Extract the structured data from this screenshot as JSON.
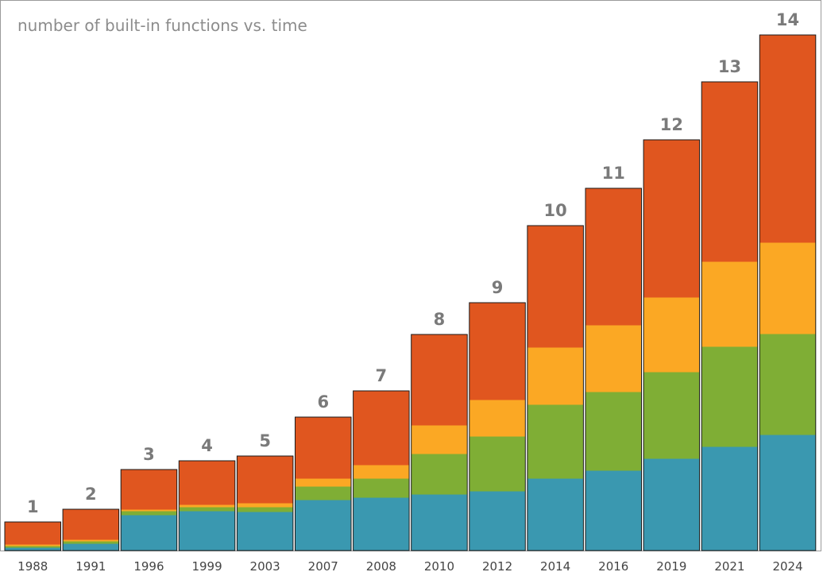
{
  "chart_data": {
    "type": "bar",
    "title": "number of built-in functions vs. time",
    "xlabel": "",
    "ylabel": "",
    "stacked": true,
    "categories": [
      "1988",
      "1991",
      "1996",
      "1999",
      "2003",
      "2007",
      "2008",
      "2010",
      "2012",
      "2014",
      "2016",
      "2019",
      "2021",
      "2024"
    ],
    "version_labels": [
      "1",
      "2",
      "3",
      "4",
      "5",
      "6",
      "7",
      "8",
      "9",
      "10",
      "11",
      "12",
      "13",
      "14"
    ],
    "series": [
      {
        "color": "#3a98b0",
        "values": [
          4,
          9,
          45,
          50,
          49,
          64,
          67,
          71,
          75,
          91,
          101,
          116,
          131,
          146
        ]
      },
      {
        "color": "#7fae35",
        "values": [
          2,
          3,
          5,
          5,
          6,
          17,
          24,
          51,
          69,
          93,
          99,
          109,
          126,
          127
        ]
      },
      {
        "color": "#fba824",
        "values": [
          2,
          2,
          2,
          3,
          5,
          10,
          17,
          36,
          46,
          72,
          84,
          94,
          107,
          115
        ]
      },
      {
        "color": "#e0561f",
        "values": [
          28,
          38,
          50,
          55,
          59,
          77,
          93,
          114,
          122,
          153,
          172,
          198,
          226,
          261
        ]
      }
    ],
    "ylim": [
      0,
      660
    ],
    "grid": false,
    "legend": "none"
  }
}
